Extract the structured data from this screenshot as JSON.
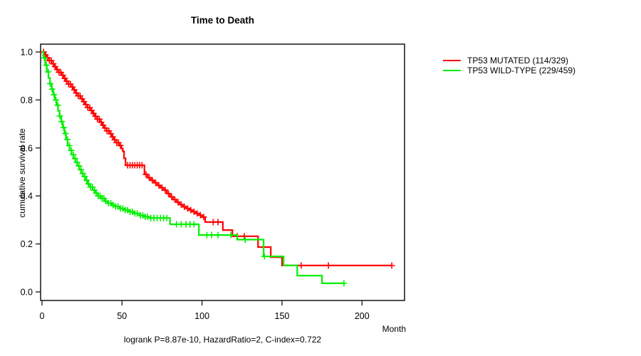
{
  "title": "Time to Death",
  "footer": "logrank P=8.87e-10, HazardRatio=2, C-index=0.722",
  "axes": {
    "x_label": "Month",
    "y_label": "cumulative survival rate",
    "x_ticks": [
      0,
      50,
      100,
      150,
      200
    ],
    "y_ticks": [
      "0.0",
      "0.2",
      "0.4",
      "0.6",
      "0.8",
      "1.0"
    ]
  },
  "legend": {
    "items": [
      {
        "label": "TP53 MUTATED (114/329)",
        "color": "#ff0000"
      },
      {
        "label": "TP53 WILD-TYPE (229/459)",
        "color": "#00f000"
      }
    ]
  },
  "chart_data": {
    "type": "line",
    "subtype": "kaplan-meier-step",
    "title": "Time to Death",
    "xlabel": "Month",
    "ylabel": "cumulative survival rate",
    "xlim": [
      0,
      226
    ],
    "ylim": [
      0,
      1
    ],
    "grid": false,
    "legend_position": "right-outside",
    "series": [
      {
        "name": "TP53 MUTATED (114/329)",
        "color": "#ff0000",
        "end_month": 218.6,
        "steps": [
          [
            0,
            1.0
          ],
          [
            1.5,
            0.988
          ],
          [
            3,
            0.976
          ],
          [
            4.5,
            0.964
          ],
          [
            6,
            0.951
          ],
          [
            7.5,
            0.939
          ],
          [
            9,
            0.927
          ],
          [
            10.5,
            0.915
          ],
          [
            12,
            0.903
          ],
          [
            13.5,
            0.89
          ],
          [
            15,
            0.878
          ],
          [
            16.5,
            0.866
          ],
          [
            18,
            0.854
          ],
          [
            19.5,
            0.842
          ],
          [
            21,
            0.829
          ],
          [
            22.5,
            0.817
          ],
          [
            24,
            0.805
          ],
          [
            25.5,
            0.793
          ],
          [
            27,
            0.781
          ],
          [
            28.5,
            0.768
          ],
          [
            30,
            0.756
          ],
          [
            31.5,
            0.744
          ],
          [
            33,
            0.732
          ],
          [
            34.5,
            0.72
          ],
          [
            36,
            0.707
          ],
          [
            37.5,
            0.695
          ],
          [
            39,
            0.683
          ],
          [
            40.5,
            0.671
          ],
          [
            42,
            0.659
          ],
          [
            43.5,
            0.646
          ],
          [
            45,
            0.634
          ],
          [
            46.5,
            0.622
          ],
          [
            48,
            0.61
          ],
          [
            49.5,
            0.598
          ],
          [
            50.5,
            0.586
          ],
          [
            51.3,
            0.557
          ],
          [
            52.2,
            0.528
          ],
          [
            64,
            0.49
          ],
          [
            66,
            0.476
          ],
          [
            68,
            0.465
          ],
          [
            70,
            0.455
          ],
          [
            72,
            0.444
          ],
          [
            74,
            0.434
          ],
          [
            76,
            0.424
          ],
          [
            78,
            0.41
          ],
          [
            80,
            0.396
          ],
          [
            82,
            0.385
          ],
          [
            84,
            0.374
          ],
          [
            86,
            0.364
          ],
          [
            88,
            0.355
          ],
          [
            90,
            0.348
          ],
          [
            92,
            0.341
          ],
          [
            94,
            0.334
          ],
          [
            96,
            0.327
          ],
          [
            98,
            0.32
          ],
          [
            100,
            0.312
          ],
          [
            102,
            0.291
          ],
          [
            113,
            0.258
          ],
          [
            119,
            0.232
          ],
          [
            135,
            0.187
          ],
          [
            143,
            0.145
          ],
          [
            150,
            0.11
          ]
        ],
        "censor_marks": [
          1,
          2.2,
          3.4,
          4.6,
          5.8,
          7,
          8.2,
          9.4,
          10.6,
          11.8,
          13,
          14.2,
          15.4,
          16.6,
          17.8,
          19,
          20.2,
          21.4,
          22.6,
          23.8,
          25,
          26.2,
          27.4,
          28.6,
          29.8,
          31,
          32.2,
          33.4,
          34.6,
          35.8,
          37,
          38.2,
          39.4,
          40.6,
          41.8,
          43,
          44.2,
          45.4,
          46.6,
          47.8,
          49,
          53.5,
          55,
          56.5,
          58,
          59.5,
          61,
          62.5,
          65,
          67,
          69,
          71,
          73,
          75,
          77,
          79,
          81,
          83,
          85,
          87,
          89,
          91,
          93,
          95,
          97,
          99,
          101,
          107,
          110,
          122,
          126.4,
          162,
          179,
          218.6
        ]
      },
      {
        "name": "TP53 WILD-TYPE (229/459)",
        "color": "#00f000",
        "end_month": 188.7,
        "steps": [
          [
            0,
            1.0
          ],
          [
            1,
            0.975
          ],
          [
            2,
            0.945
          ],
          [
            3,
            0.917
          ],
          [
            4,
            0.892
          ],
          [
            5,
            0.868
          ],
          [
            6,
            0.845
          ],
          [
            7,
            0.822
          ],
          [
            8,
            0.8
          ],
          [
            9,
            0.778
          ],
          [
            10,
            0.755
          ],
          [
            11,
            0.733
          ],
          [
            12,
            0.71
          ],
          [
            13,
            0.685
          ],
          [
            14,
            0.66
          ],
          [
            15,
            0.635
          ],
          [
            16,
            0.61
          ],
          [
            17.2,
            0.59
          ],
          [
            18.4,
            0.572
          ],
          [
            19.6,
            0.556
          ],
          [
            20.8,
            0.54
          ],
          [
            22,
            0.525
          ],
          [
            23.2,
            0.51
          ],
          [
            24.4,
            0.494
          ],
          [
            25.6,
            0.481
          ],
          [
            27,
            0.465
          ],
          [
            28.4,
            0.45
          ],
          [
            30,
            0.437
          ],
          [
            31.6,
            0.424
          ],
          [
            33.2,
            0.412
          ],
          [
            35,
            0.4
          ],
          [
            37,
            0.39
          ],
          [
            39,
            0.378
          ],
          [
            41,
            0.37
          ],
          [
            43.5,
            0.362
          ],
          [
            46,
            0.356
          ],
          [
            48.5,
            0.348
          ],
          [
            51,
            0.341
          ],
          [
            54,
            0.334
          ],
          [
            57.5,
            0.327
          ],
          [
            61,
            0.319
          ],
          [
            64,
            0.313
          ],
          [
            67,
            0.308
          ],
          [
            80,
            0.282
          ],
          [
            98,
            0.237
          ],
          [
            122,
            0.218
          ],
          [
            138.5,
            0.148
          ],
          [
            151,
            0.11
          ],
          [
            159.5,
            0.068
          ],
          [
            175,
            0.036
          ]
        ],
        "censor_marks": [
          1.5,
          2.7,
          3.9,
          5.1,
          6.3,
          7.5,
          8.7,
          9.9,
          11.1,
          12.3,
          13.5,
          14.7,
          15.9,
          17.1,
          18.3,
          19.5,
          20.7,
          21.9,
          23.1,
          24.3,
          25.5,
          26.7,
          27.9,
          29.1,
          30.3,
          31.5,
          32.7,
          33.9,
          35.1,
          36.3,
          37.5,
          38.7,
          39.9,
          41.5,
          43,
          44.5,
          46,
          47.5,
          49,
          50.5,
          52,
          53.5,
          55,
          56.5,
          58,
          59.5,
          61.5,
          63,
          64.5,
          66,
          68,
          70,
          72,
          74,
          76,
          78,
          84,
          87,
          90,
          92.5,
          95,
          103,
          106,
          110,
          118,
          127,
          139,
          188.7
        ]
      }
    ]
  },
  "style": {
    "axis_color": "#222222",
    "text_color": "#000000"
  }
}
